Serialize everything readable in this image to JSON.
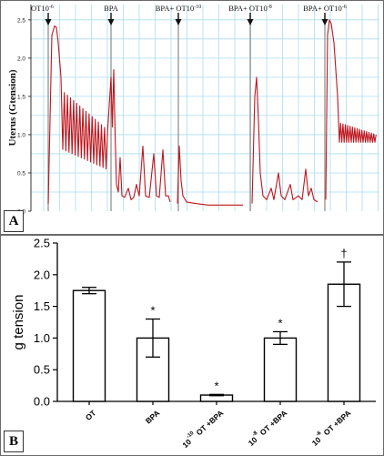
{
  "chart_data": [
    {
      "type": "line",
      "panel_label": "A",
      "ylabel": "Uterus (Gtension)",
      "ylim": [
        0,
        2.7
      ],
      "y_ticks": [
        "0.0",
        "0.5",
        "1.0",
        "1.5",
        "2.0",
        "2.5"
      ],
      "grid": true,
      "series_color": "#c0151c",
      "annotations": [
        {
          "text": "OT10",
          "sup": "-6"
        },
        {
          "text": "BPA",
          "sup": ""
        },
        {
          "text": "BPA+ OT10",
          "sup": "-10"
        },
        {
          "text": "BPA+ OT10",
          "sup": "-8"
        },
        {
          "text": "BPA+ OT10",
          "sup": "-6"
        }
      ]
    },
    {
      "type": "bar",
      "panel_label": "B",
      "ylabel": "g tension",
      "ylim": [
        0,
        2.5
      ],
      "y_ticks": [
        "0.0",
        "0.5",
        "1.0",
        "1.5",
        "2.0",
        "2.5"
      ],
      "categories": [
        {
          "pre": "",
          "sup": "",
          "post": "OT"
        },
        {
          "pre": "",
          "sup": "",
          "post": "BPA"
        },
        {
          "pre": "10",
          "sup": "-10",
          "post": " OT +BPA"
        },
        {
          "pre": "10",
          "sup": "-8",
          "post": " OT +BPA"
        },
        {
          "pre": "10",
          "sup": "-6",
          "post": " OT +BPA"
        }
      ],
      "values": [
        1.75,
        1.0,
        0.1,
        1.0,
        1.85
      ],
      "errors": [
        0.05,
        0.3,
        0.01,
        0.1,
        0.35
      ],
      "significance": [
        "",
        "*",
        "*",
        "*",
        "†"
      ]
    }
  ]
}
